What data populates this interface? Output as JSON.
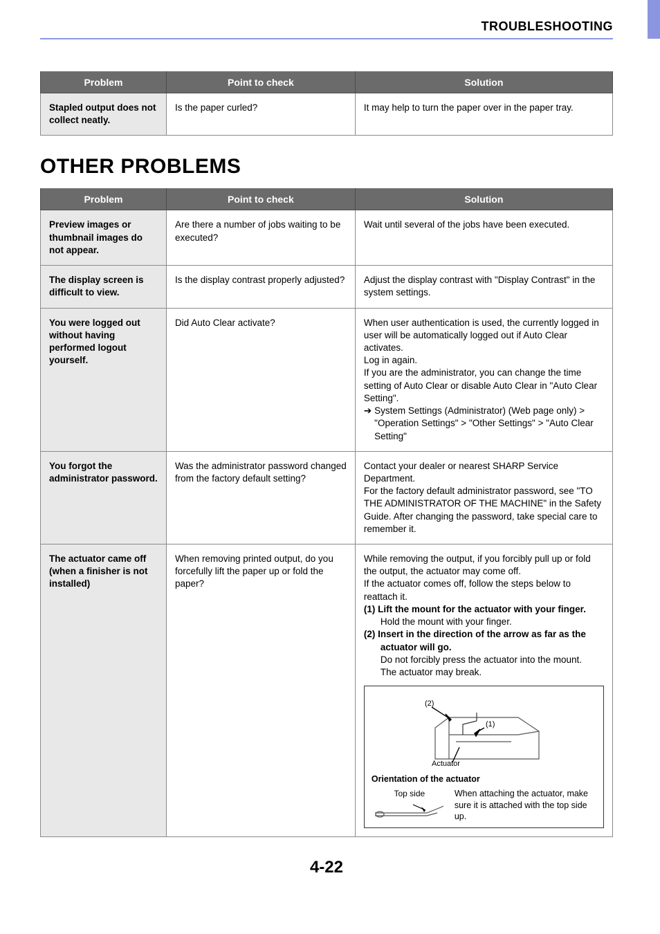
{
  "colors": {
    "accent": "#8c96e0",
    "header_bg": "#6b6b6b",
    "header_text": "#ffffff",
    "problem_bg": "#e8e8e8",
    "border": "#8a8a8a",
    "text": "#000000",
    "page_bg": "#ffffff"
  },
  "typography": {
    "body_font": "Arial, Helvetica, sans-serif",
    "body_size_pt": 10,
    "section_title_size_pt": 22,
    "header_title_size_pt": 14,
    "page_num_size_pt": 18
  },
  "header": {
    "title": "TROUBLESHOOTING"
  },
  "table1": {
    "columns": [
      "Problem",
      "Point to check",
      "Solution"
    ],
    "col_widths_pct": [
      22,
      33,
      45
    ],
    "rows": [
      {
        "problem": "Stapled output does not collect neatly.",
        "check": "Is the paper curled?",
        "solution": "It may help to turn the paper over in the paper tray."
      }
    ]
  },
  "section_title": "OTHER PROBLEMS",
  "table2": {
    "columns": [
      "Problem",
      "Point to check",
      "Solution"
    ],
    "col_widths_pct": [
      22,
      33,
      45
    ],
    "rows": [
      {
        "problem": "Preview images or thumbnail images do not appear.",
        "check": "Are there a number of jobs waiting to be executed?",
        "solution_lines": [
          {
            "t": "Wait until several of the jobs have been executed."
          }
        ]
      },
      {
        "problem": "The display screen is difficult to view.",
        "check": "Is the display contrast properly adjusted?",
        "solution_lines": [
          {
            "t": "Adjust the display contrast with \"Display Contrast\" in the system settings."
          }
        ]
      },
      {
        "problem": "You were logged out without having performed logout yourself.",
        "check": "Did Auto Clear activate?",
        "solution_lines": [
          {
            "t": "When user authentication is used, the currently logged in user will be automatically logged out if Auto Clear activates."
          },
          {
            "t": "Log in again."
          },
          {
            "t": "If you are the administrator, you can change the time setting of Auto Clear or disable Auto Clear in \"Auto Clear Setting\"."
          },
          {
            "arrow": true,
            "t": "System Settings (Administrator) (Web page only) > \"Operation Settings\" > \"Other Settings\" > \"Auto Clear Setting\""
          }
        ]
      },
      {
        "problem": "You forgot the administrator password.",
        "check": "Was the administrator password changed from the factory default setting?",
        "solution_lines": [
          {
            "t": "Contact your dealer or nearest SHARP Service Department."
          },
          {
            "t": "For the factory default administrator password, see \"TO THE ADMINISTRATOR OF THE MACHINE\" in the Safety Guide. After changing the password, take special care to remember it."
          }
        ]
      },
      {
        "problem": "The actuator came off (when a finisher is not installed)",
        "check": "When removing printed output, do you forcefully lift the paper up or fold the paper?",
        "solution_lines": [
          {
            "t": "While removing the output, if you forcibly pull up or fold the output, the actuator may come off."
          },
          {
            "t": "If the actuator comes off, follow the steps below to reattach it."
          },
          {
            "bold": true,
            "t": "(1) Lift the mount for the actuator with your finger."
          },
          {
            "indent": "step",
            "t": "Hold the mount with your finger."
          },
          {
            "bold": true,
            "t": "(2) Insert in the direction of the arrow as far as the"
          },
          {
            "bold": true,
            "indent": "step",
            "t": "actuator will go."
          },
          {
            "indent": "step",
            "t": "Do not forcibly press the actuator into the mount."
          },
          {
            "indent": "step",
            "t": "The actuator may break."
          }
        ],
        "diagram": {
          "labels": {
            "l2": "(2)",
            "l1": "(1)",
            "act": "Actuator"
          },
          "orientation_title": "Orientation of the actuator",
          "top_side_label": "Top side",
          "orientation_text": "When attaching the actuator, make sure it is attached with the top side up."
        }
      }
    ]
  },
  "page_number": "4-22"
}
